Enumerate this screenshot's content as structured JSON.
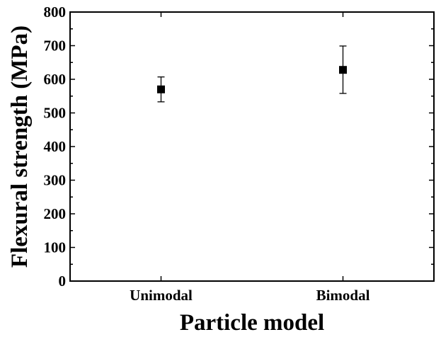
{
  "chart_data": {
    "type": "scatter",
    "title": "",
    "xlabel": "Particle model",
    "ylabel": "Flexural strength (MPa)",
    "categories": [
      "Unimodal",
      "Bimodal"
    ],
    "ylim": [
      0,
      800
    ],
    "yticks": [
      "0",
      "100",
      "200",
      "300",
      "400",
      "500",
      "600",
      "700",
      "800"
    ],
    "series": [
      {
        "values": [
          570,
          628
        ],
        "error_low": [
          533,
          558
        ],
        "error_high": [
          607,
          699
        ]
      }
    ],
    "grid": false,
    "legend": "none",
    "marker": "filled-square",
    "color": "#000000"
  }
}
